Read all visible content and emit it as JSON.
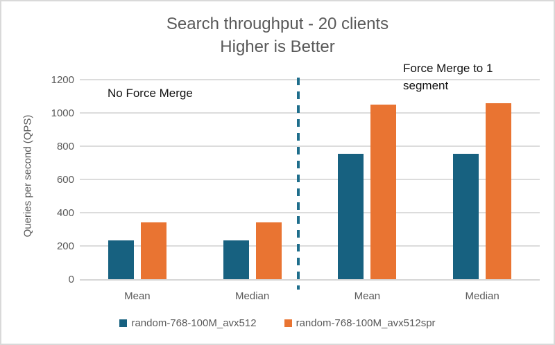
{
  "chart_data": {
    "type": "bar",
    "title": "Search throughput - 20 clients",
    "subtitle": "Higher is Better",
    "ylabel": "Queries per second (QPS)",
    "xlabel": "",
    "ylim": [
      0,
      1200
    ],
    "yticks": [
      0,
      200,
      400,
      600,
      800,
      1000,
      1200
    ],
    "grid": true,
    "legend_position": "bottom",
    "categories": [
      "Mean",
      "Median",
      "Mean",
      "Median"
    ],
    "series": [
      {
        "name": "random-768-100M_avx512",
        "color": "#176180",
        "values": [
          235,
          235,
          755,
          755
        ]
      },
      {
        "name": "random-768-100M_avx512spr",
        "color": "#e97432",
        "values": [
          340,
          340,
          1050,
          1060
        ]
      }
    ],
    "annotations": [
      {
        "text": "No Force Merge",
        "region": "left"
      },
      {
        "text": "Force Merge to 1 segment",
        "region": "right"
      }
    ],
    "divider": {
      "style": "dashed",
      "color": "#1f6e8c",
      "between_categories": [
        2,
        3
      ]
    },
    "colors": {
      "grid": "#dcdcdc",
      "axis": "#d6d6d6",
      "title_text": "#595959",
      "tick_text": "#595959",
      "annotation_text": "#111111",
      "frame_border": "#d9d9d9"
    }
  }
}
